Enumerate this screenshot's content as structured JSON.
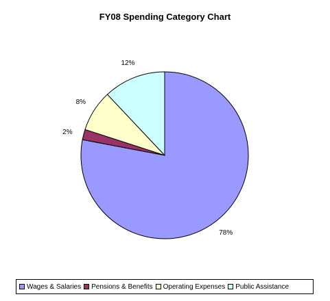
{
  "chart_data": {
    "type": "pie",
    "title": "FY08 Spending Category Chart",
    "categories": [
      "Wages & Salaries",
      "Pensions & Benefits",
      "Operating Expenses",
      "Public Assistance"
    ],
    "values": [
      78,
      2,
      8,
      12
    ],
    "labels": [
      "78%",
      "2%",
      "8%",
      "12%"
    ],
    "colors": [
      "#9999FF",
      "#993366",
      "#FFFFCC",
      "#CCFFFF"
    ],
    "legend_position": "bottom"
  }
}
